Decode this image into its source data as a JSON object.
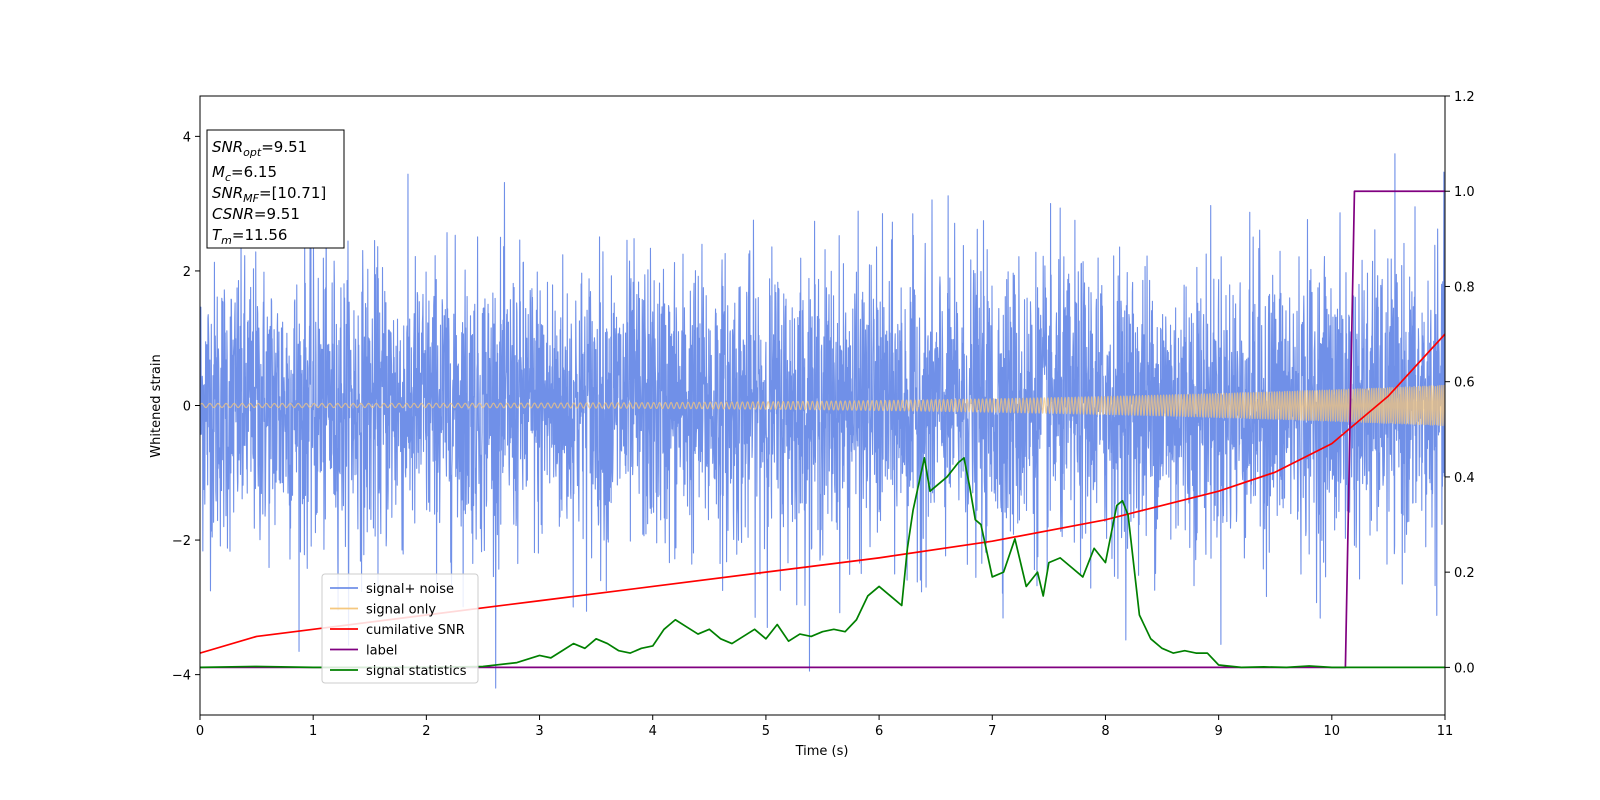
{
  "chart_data": {
    "type": "line",
    "xlabel": "Time (s)",
    "ylabel": "Whitened strain",
    "xlim": [
      0,
      11
    ],
    "ylim_left": [
      -4.6,
      4.6
    ],
    "ylim_right": [
      -0.1,
      1.2
    ],
    "x_ticks": [
      0,
      1,
      2,
      3,
      4,
      5,
      6,
      7,
      8,
      9,
      10,
      11
    ],
    "x_tick_labels": [
      "0",
      "1",
      "2",
      "3",
      "4",
      "5",
      "6",
      "7",
      "8",
      "9",
      "10",
      "11"
    ],
    "y_left_ticks": [
      -4,
      -2,
      0,
      2,
      4
    ],
    "y_left_tick_labels": [
      "−4",
      "−2",
      "0",
      "2",
      "4"
    ],
    "y_right_ticks": [
      0.0,
      0.2,
      0.4,
      0.6,
      0.8,
      1.0,
      1.2
    ],
    "y_right_tick_labels": [
      "0.0",
      "0.2",
      "0.4",
      "0.6",
      "0.8",
      "1.0",
      "1.2"
    ],
    "grid": false,
    "legend_placement": "lower-left",
    "annotations": [
      {
        "name": "SNR",
        "sub": "opt",
        "value": "=9.51"
      },
      {
        "name": "M",
        "sub": "c",
        "value": "=6.15"
      },
      {
        "name": "SNR",
        "sub": "MF",
        "value": "=[10.71]"
      },
      {
        "name": "CSNR",
        "sub": "",
        "value": "=9.51"
      },
      {
        "name": "T",
        "sub": "m",
        "value": "=11.56"
      }
    ],
    "series": [
      {
        "name": "signal+ noise",
        "axis": "left",
        "color": "#7090e8",
        "kind": "noise",
        "std": 1.0,
        "peak_range": [
          -4.2,
          4.15
        ]
      },
      {
        "name": "signal only",
        "axis": "left",
        "color": "#f5c77e",
        "kind": "chirp",
        "amplitude_start": 0.03,
        "amplitude_end": 0.3
      },
      {
        "name": "cumilative SNR",
        "axis": "right",
        "color": "#ff0000",
        "kind": "line",
        "x": [
          0,
          0.5,
          1,
          2,
          3,
          4,
          5,
          6,
          7,
          8,
          9,
          9.5,
          10,
          10.5,
          11
        ],
        "y": [
          0.03,
          0.065,
          0.08,
          0.11,
          0.14,
          0.17,
          0.2,
          0.23,
          0.265,
          0.31,
          0.37,
          0.41,
          0.47,
          0.57,
          0.7
        ]
      },
      {
        "name": "label",
        "axis": "right",
        "color": "#800080",
        "kind": "line",
        "x": [
          0,
          10.12,
          10.2,
          11
        ],
        "y": [
          0.0,
          0.0,
          1.0,
          1.0
        ]
      },
      {
        "name": "signal statistics",
        "axis": "right",
        "color": "#008000",
        "kind": "line",
        "x": [
          0,
          0.5,
          1,
          1.5,
          2,
          2.5,
          2.8,
          3.0,
          3.1,
          3.2,
          3.3,
          3.4,
          3.5,
          3.6,
          3.7,
          3.8,
          3.9,
          4.0,
          4.1,
          4.15,
          4.2,
          4.3,
          4.4,
          4.5,
          4.6,
          4.7,
          4.8,
          4.9,
          5.0,
          5.1,
          5.2,
          5.3,
          5.4,
          5.5,
          5.6,
          5.7,
          5.8,
          5.9,
          6.0,
          6.1,
          6.2,
          6.25,
          6.3,
          6.4,
          6.45,
          6.5,
          6.6,
          6.7,
          6.75,
          6.8,
          6.85,
          6.9,
          7.0,
          7.1,
          7.2,
          7.25,
          7.3,
          7.4,
          7.45,
          7.5,
          7.6,
          7.7,
          7.8,
          7.9,
          8.0,
          8.1,
          8.15,
          8.2,
          8.3,
          8.4,
          8.5,
          8.6,
          8.7,
          8.8,
          8.9,
          9.0,
          9.2,
          9.4,
          9.6,
          9.8,
          10.0,
          10.2,
          10.5,
          11
        ],
        "y": [
          0.0,
          0.002,
          0.0,
          0.0,
          0.0,
          0.002,
          0.01,
          0.025,
          0.02,
          0.035,
          0.05,
          0.04,
          0.06,
          0.05,
          0.035,
          0.03,
          0.04,
          0.045,
          0.08,
          0.09,
          0.1,
          0.085,
          0.07,
          0.08,
          0.06,
          0.05,
          0.065,
          0.08,
          0.06,
          0.09,
          0.055,
          0.07,
          0.065,
          0.075,
          0.08,
          0.075,
          0.1,
          0.15,
          0.17,
          0.15,
          0.13,
          0.25,
          0.33,
          0.44,
          0.37,
          0.38,
          0.4,
          0.43,
          0.44,
          0.38,
          0.31,
          0.3,
          0.19,
          0.2,
          0.27,
          0.22,
          0.17,
          0.2,
          0.15,
          0.22,
          0.23,
          0.21,
          0.19,
          0.25,
          0.22,
          0.34,
          0.35,
          0.32,
          0.11,
          0.06,
          0.04,
          0.03,
          0.035,
          0.03,
          0.03,
          0.005,
          0.0,
          0.001,
          0.0,
          0.003,
          0.0,
          0.0,
          0.0,
          0.0
        ]
      }
    ]
  }
}
